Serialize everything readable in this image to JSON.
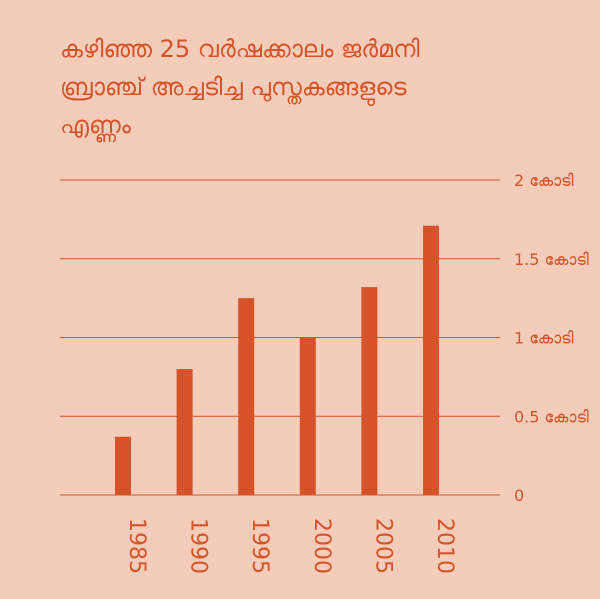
{
  "chart_data": {
    "type": "bar",
    "title": "കഴിഞ്ഞ 25 വർഷക്കാലം ജർമനി\nബ്രാഞ്ച് അച്ചടിച്ച പുസ്തകങ്ങളുടെ\nഎണ്ണം",
    "categories": [
      "1985",
      "1990",
      "1995",
      "2000",
      "2005",
      "2010"
    ],
    "values": [
      3700000,
      8000000,
      12500000,
      10000000,
      13200000,
      17100000
    ],
    "ylim": [
      0,
      20000000
    ],
    "yticks": [
      {
        "value": 0,
        "label": "0"
      },
      {
        "value": 5000000,
        "label": "0.5 കോടി"
      },
      {
        "value": 10000000,
        "label": "1 കോടി"
      },
      {
        "value": 15000000,
        "label": "1.5 കോടി"
      },
      {
        "value": 20000000,
        "label": "2 കോടി"
      }
    ],
    "xlabel": "",
    "ylabel": "",
    "grid": true,
    "colors": {
      "bar": "#d6532a",
      "background": "#f3cdb9"
    }
  }
}
